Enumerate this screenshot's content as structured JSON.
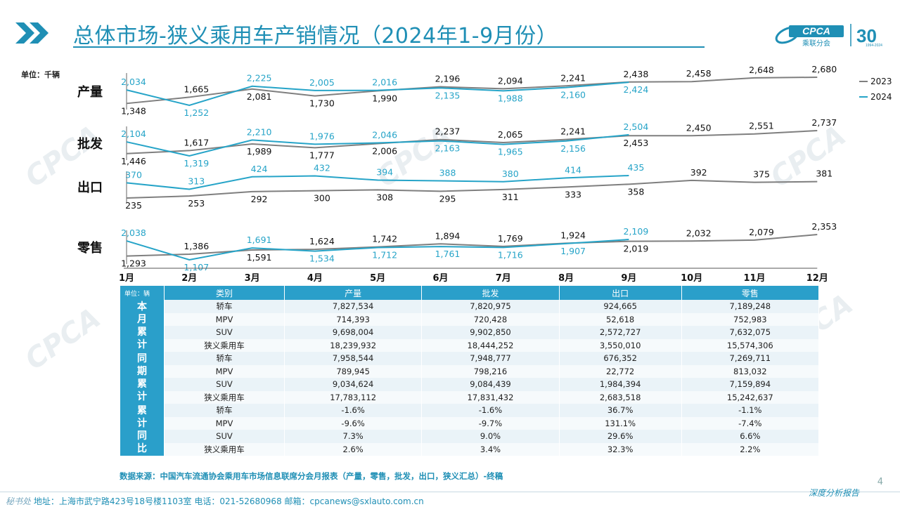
{
  "title": "总体市场-狭义乘用车产销情况（2024年1-9月份）",
  "logo": {
    "text": "CPCA",
    "sub": "乘联分会",
    "anniv": "30",
    "since": "1994-2024"
  },
  "watermark": "CPCA",
  "chart_data": {
    "type": "line",
    "unit": "单位：千辆",
    "categories": [
      "1月",
      "2月",
      "3月",
      "4月",
      "5月",
      "6月",
      "7月",
      "8月",
      "9月",
      "10月",
      "11月",
      "12月"
    ],
    "legend": [
      "2023",
      "2024"
    ],
    "legend_position": "top-right",
    "colors": {
      "2023": "#7f7f7f",
      "2024": "#26a4c8"
    },
    "panels": [
      {
        "name": "产量",
        "series": [
          {
            "name": "2023",
            "values": [
              1348,
              1665,
              2081,
              1730,
              1990,
              2196,
              2094,
              2241,
              2438,
              2458,
              2648,
              2680
            ]
          },
          {
            "name": "2024",
            "values": [
              2034,
              1252,
              2225,
              2005,
              2016,
              2135,
              1988,
              2160,
              2424
            ]
          }
        ]
      },
      {
        "name": "批发",
        "series": [
          {
            "name": "2023",
            "values": [
              1446,
              1617,
              1989,
              1777,
              2006,
              2237,
              2065,
              2241,
              2453,
              2450,
              2551,
              2737
            ]
          },
          {
            "name": "2024",
            "values": [
              2104,
              1319,
              2210,
              1976,
              2046,
              2163,
              1965,
              2156,
              2504
            ]
          }
        ]
      },
      {
        "name": "出口",
        "series": [
          {
            "name": "2023",
            "values": [
              235,
              253,
              292,
              300,
              308,
              295,
              311,
              333,
              358,
              392,
              375,
              381
            ]
          },
          {
            "name": "2024",
            "values": [
              370,
              313,
              424,
              432,
              394,
              388,
              380,
              414,
              435
            ]
          }
        ]
      },
      {
        "name": "零售",
        "series": [
          {
            "name": "2023",
            "values": [
              1293,
              1386,
              1591,
              1624,
              1742,
              1894,
              1769,
              1924,
              2019,
              2032,
              2079,
              2353
            ]
          },
          {
            "name": "2024",
            "values": [
              2038,
              1107,
              1691,
              1534,
              1712,
              1761,
              1716,
              1907,
              2109
            ]
          }
        ]
      }
    ]
  },
  "table": {
    "unit": "单位：辆",
    "headers": [
      "类别",
      "产量",
      "批发",
      "出口",
      "零售"
    ],
    "groups": [
      {
        "label": "本月累计",
        "rows": [
          [
            "轿车",
            "7,827,534",
            "7,820,975",
            "924,665",
            "7,189,248"
          ],
          [
            "MPV",
            "714,393",
            "720,428",
            "52,618",
            "752,983"
          ],
          [
            "SUV",
            "9,698,004",
            "9,902,850",
            "2,572,727",
            "7,632,075"
          ],
          [
            "狭义乘用车",
            "18,239,932",
            "18,444,252",
            "3,550,010",
            "15,574,306"
          ]
        ]
      },
      {
        "label": "同期累计",
        "rows": [
          [
            "轿车",
            "7,958,544",
            "7,948,777",
            "676,352",
            "7,269,711"
          ],
          [
            "MPV",
            "789,945",
            "798,216",
            "22,772",
            "813,032"
          ],
          [
            "SUV",
            "9,034,624",
            "9,084,439",
            "1,984,394",
            "7,159,894"
          ],
          [
            "狭义乘用车",
            "17,783,112",
            "17,831,432",
            "2,683,518",
            "15,242,637"
          ]
        ]
      },
      {
        "label": "累计同比",
        "rows": [
          [
            "轿车",
            "-1.6%",
            "-1.6%",
            "36.7%",
            "-1.1%"
          ],
          [
            "MPV",
            "-9.6%",
            "-9.7%",
            "131.1%",
            "-7.4%"
          ],
          [
            "SUV",
            "7.3%",
            "9.0%",
            "29.6%",
            "6.6%"
          ],
          [
            "狭义乘用车",
            "2.6%",
            "3.4%",
            "32.3%",
            "2.2%"
          ]
        ]
      }
    ]
  },
  "source": "数据来源：中国汽车流通协会乘用车市场信息联席分会月报表（产量，零售，批发，出口，狭义汇总）-终稿",
  "footer": {
    "label": "秘书处",
    "address": "地址：上海市武宁路423号18号楼1103室",
    "phone": "电话：021-52680968",
    "email": "邮箱：cpcanews@sxlauto.com.cn",
    "right": "深度分析报告",
    "page": "4"
  }
}
